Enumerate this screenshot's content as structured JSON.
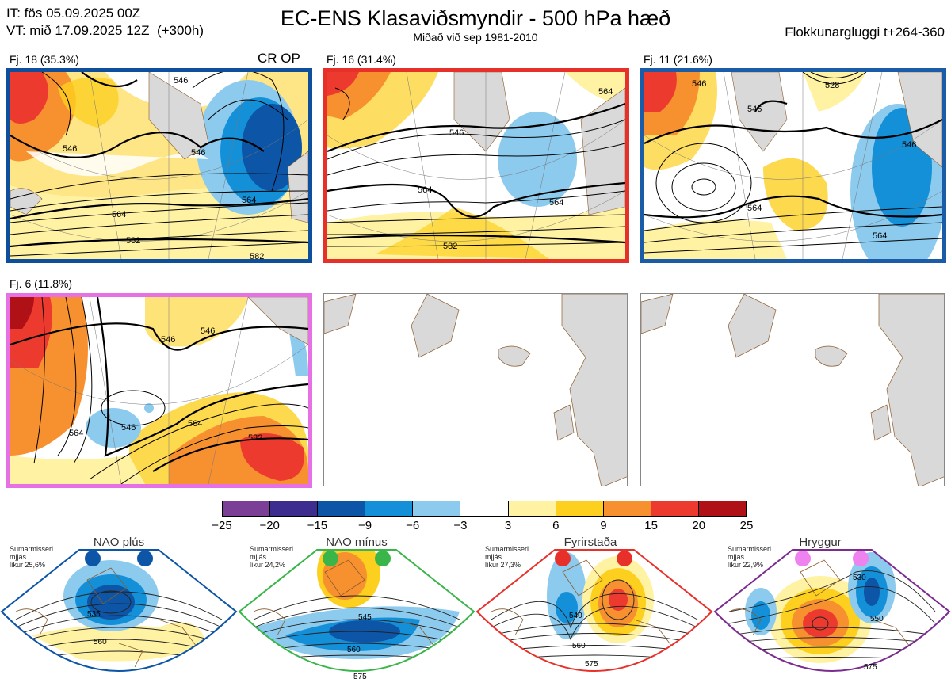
{
  "header": {
    "it": "IT: fös 05.09.2025 00Z",
    "vt": "VT: mið 17.09.2025 12Z  (+300h)",
    "title": "EC-ENS Klasaviðsmyndir - 500 hPa hæð",
    "subtitle": "Miðað við sep 1981-2010",
    "window": "Flokkunargluggi t+264-360"
  },
  "clusters": [
    {
      "label": "Fj. 18 (35.3%)",
      "tag": "CR OP",
      "border": "#0d4f9c",
      "contours": [
        "546",
        "546",
        "564",
        "564",
        "582",
        "582",
        "546"
      ]
    },
    {
      "label": "Fj. 16 (31.4%)",
      "border": "#e8302b",
      "contours": [
        "546",
        "564",
        "582",
        "564",
        "564"
      ]
    },
    {
      "label": "Fj. 11 (21.6%)",
      "border": "#1a5ca8",
      "contours": [
        "546",
        "528",
        "546",
        "546",
        "564",
        "564"
      ]
    },
    {
      "label": "Fj. 6 (11.8%)",
      "border": "#e571e5",
      "contours": [
        "546",
        "546",
        "546",
        "564",
        "564",
        "582"
      ]
    }
  ],
  "colorbar": {
    "ticks": [
      "−25",
      "−20",
      "−15",
      "−9",
      "−6",
      "−3",
      "3",
      "6",
      "9",
      "15",
      "20",
      "25"
    ],
    "colors": [
      "#7b3f98",
      "#3c2d8f",
      "#0d55a6",
      "#1490d8",
      "#8ccaee",
      "#ffffff",
      "#fff2a3",
      "#fdd020",
      "#f7912f",
      "#ec3a2f",
      "#b01117"
    ]
  },
  "regimes": [
    {
      "name": "NAO plús",
      "season": "Sumarmisseri",
      "band": "mjjás",
      "prob": "líkur 25,6%",
      "dot": "#0d55a6",
      "border": "#0d55a6",
      "contours": [
        "535",
        "560"
      ]
    },
    {
      "name": "NAO mínus",
      "season": "Sumarmisseri",
      "band": "mjjás",
      "prob": "líkur 24,2%",
      "dot": "#3ab54a",
      "border": "#3ab54a",
      "contours": [
        "545",
        "560",
        "575"
      ]
    },
    {
      "name": "Fyrirstaða",
      "season": "Sumarmisseri",
      "band": "mjjás",
      "prob": "líkur 27,3%",
      "dot": "#e8302b",
      "border": "#e8302b",
      "contours": [
        "540",
        "560",
        "575"
      ]
    },
    {
      "name": "Hryggur",
      "season": "Sumarmisseri",
      "band": "mjjás",
      "prob": "líkur 22,9%",
      "dot": "#ee82ee",
      "border": "#7a2d8f",
      "contours": [
        "530",
        "550",
        "575"
      ]
    }
  ]
}
